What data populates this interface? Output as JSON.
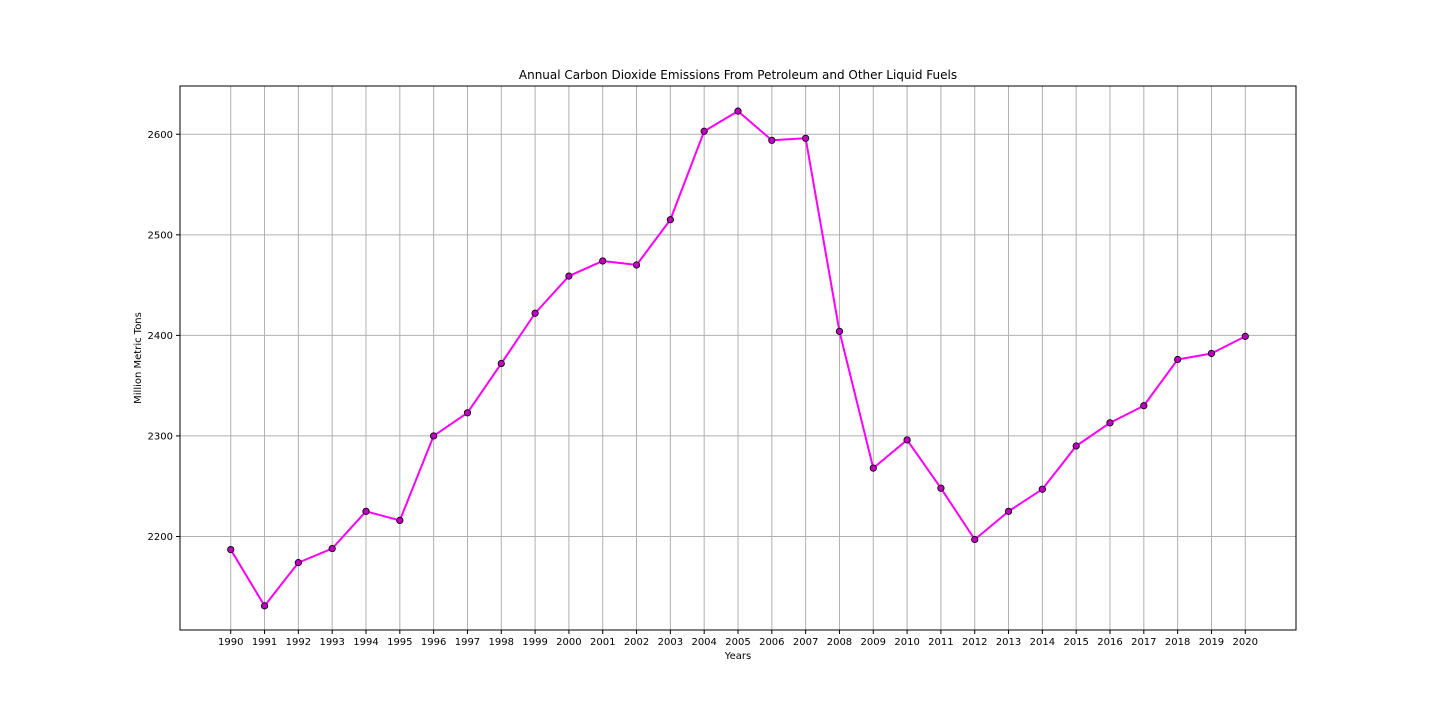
{
  "chart_data": {
    "type": "line",
    "title": "Annual Carbon Dioxide Emissions From Petroleum and Other Liquid Fuels",
    "xlabel": "Years",
    "ylabel": "Million Metric Tons",
    "x": [
      1990,
      1991,
      1992,
      1993,
      1994,
      1995,
      1996,
      1997,
      1998,
      1999,
      2000,
      2001,
      2002,
      2003,
      2004,
      2005,
      2006,
      2007,
      2008,
      2009,
      2010,
      2011,
      2012,
      2013,
      2014,
      2015,
      2016,
      2017,
      2018,
      2019,
      2020
    ],
    "series": [
      {
        "values": [
          2187,
          2131,
          2174,
          2188,
          2225,
          2216,
          2300,
          2323,
          2372,
          2422,
          2459,
          2474,
          2470,
          2515,
          2603,
          2623,
          2594,
          2596,
          2404,
          2268,
          2296,
          2248,
          2197,
          2225,
          2247,
          2290,
          2313,
          2330,
          2376,
          2382,
          2399
        ],
        "color": "#ff00ff",
        "marker_color": "#bf00bf",
        "marker_edge_color": "#000000"
      }
    ],
    "x_ticks": [
      "1990",
      "1991",
      "1992",
      "1993",
      "1994",
      "1995",
      "1996",
      "1997",
      "1998",
      "1999",
      "2000",
      "2001",
      "2002",
      "2003",
      "2004",
      "2005",
      "2006",
      "2007",
      "2008",
      "2009",
      "2010",
      "2011",
      "2012",
      "2013",
      "2014",
      "2015",
      "2016",
      "2017",
      "2018",
      "2019",
      "2020"
    ],
    "y_ticks": [
      2200,
      2300,
      2400,
      2500,
      2600
    ],
    "xlim": [
      1988.5,
      2021.5
    ],
    "ylim": [
      2107,
      2648
    ],
    "grid": true,
    "grid_color": "#b0b0b0",
    "legend": "none"
  }
}
